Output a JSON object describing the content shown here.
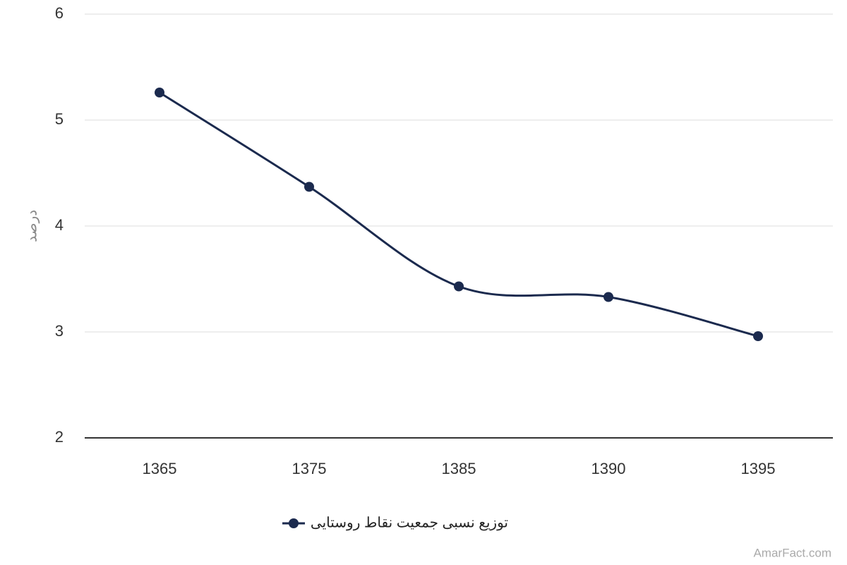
{
  "chart_data": {
    "type": "line",
    "categories": [
      "1365",
      "1375",
      "1385",
      "1390",
      "1395"
    ],
    "series": [
      {
        "name": "توزیع نسبی جمعیت نقاط روستایی",
        "color": "#1b2a4e",
        "values": [
          5.26,
          4.37,
          3.43,
          3.33,
          2.96
        ]
      }
    ],
    "ylabel": "درصد",
    "ylim": [
      2,
      6
    ],
    "yticks": [
      2,
      3,
      4,
      5,
      6
    ],
    "grid": true,
    "watermark": "AmarFact.com"
  }
}
